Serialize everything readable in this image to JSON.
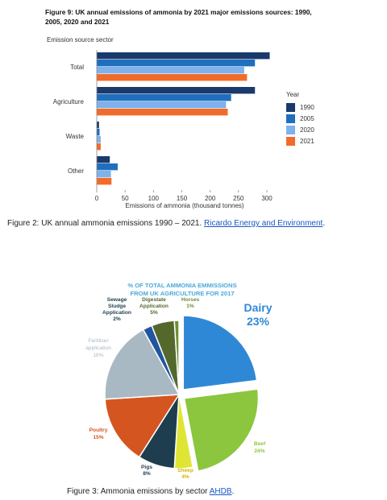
{
  "figure9": {
    "title_line1": "Figure 9: UK annual emissions of ammonia by 2021 major emissions sources: 1990,",
    "title_line2": "2005, 2020 and 2021",
    "y_axis_title": "Emission source sector",
    "legend_title": "Year"
  },
  "caption2": {
    "text": "Figure 2: UK annual ammonia emissions 1990 – 2021. ",
    "link": "Ricardo Energy and Environment",
    "suffix": "."
  },
  "caption3": {
    "text": "Figure 3: Ammonia emissions by sector ",
    "link": "AHDB",
    "suffix": "."
  },
  "chart_data": [
    {
      "type": "bar",
      "orientation": "horizontal",
      "categories": [
        "Total",
        "Agriculture",
        "Waste",
        "Other"
      ],
      "series": [
        {
          "name": "1990",
          "color": "#1a3a6b",
          "values": [
            305,
            279,
            4,
            23
          ]
        },
        {
          "name": "2005",
          "color": "#1f6fbf",
          "values": [
            279,
            237,
            5,
            37
          ]
        },
        {
          "name": "2020",
          "color": "#7fb2ea",
          "values": [
            260,
            228,
            7,
            25
          ]
        },
        {
          "name": "2021",
          "color": "#f26b2b",
          "values": [
            265,
            231,
            7,
            26
          ]
        }
      ],
      "xlabel": "Emissions of ammonia (thousand tonnes)",
      "ylabel": "Emission source sector",
      "xlim": [
        0,
        300
      ],
      "xticks": [
        0,
        50,
        100,
        150,
        200,
        250,
        300
      ],
      "legend_position": "right"
    },
    {
      "type": "pie",
      "title_line1": "% OF TOTAL AMMONIA EMMISSIONS",
      "title_line2": "FROM UK AGRICULTURE FOR 2017",
      "slices": [
        {
          "label": "Dairy",
          "value": 23,
          "value_label": "23%",
          "color": "#2f88d6"
        },
        {
          "label": "Beef",
          "value": 24,
          "value_label": "24%",
          "color": "#8cc63e"
        },
        {
          "label": "Sheep",
          "value": 4,
          "value_label": "4%",
          "color": "#dfe533"
        },
        {
          "label": "Pigs",
          "value": 8,
          "value_label": "8%",
          "color": "#1e3e4f"
        },
        {
          "label": "Poultry",
          "value": 15,
          "value_label": "15%",
          "color": "#d4551f"
        },
        {
          "label": "Fertiliser application",
          "value": 18,
          "value_label": "18%",
          "color": "#a9b9c3"
        },
        {
          "label": "Sewage Sludge Application",
          "value": 2,
          "value_label": "2%",
          "color": "#2255a0"
        },
        {
          "label": "Digestate Application",
          "value": 5,
          "value_label": "5%",
          "color": "#54682c"
        },
        {
          "label": "Horses",
          "value": 1,
          "value_label": "1%",
          "color": "#6b8e34"
        }
      ]
    }
  ]
}
